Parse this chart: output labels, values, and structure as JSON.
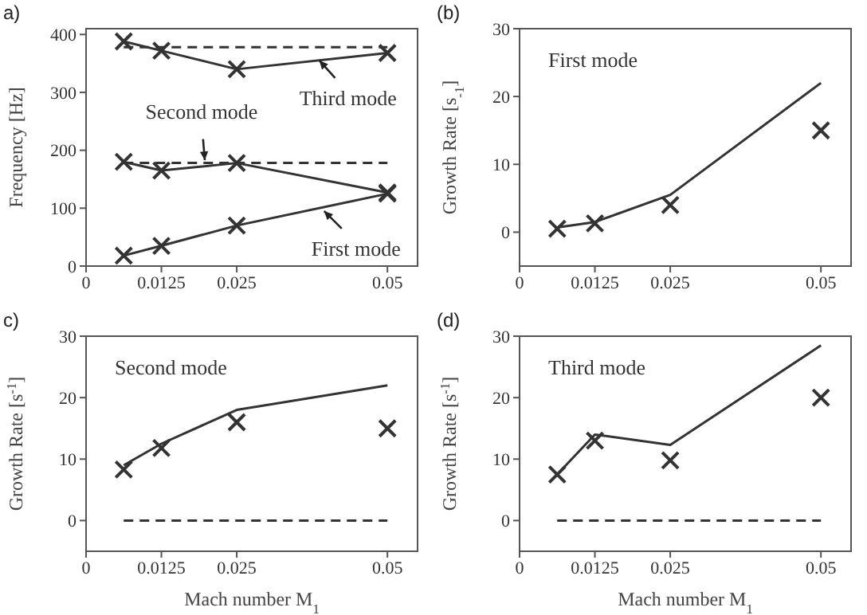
{
  "chart_data": [
    {
      "type": "line",
      "title": "a)",
      "ylabel": "Frequency [Hz]",
      "x": [
        0.00625,
        0.0125,
        0.025,
        0.05
      ],
      "xlim": [
        0,
        0.055
      ],
      "xticks": [
        0,
        0.0125,
        0.025,
        0.05
      ],
      "ylim": [
        0,
        410
      ],
      "yticks": [
        0,
        100,
        200,
        300,
        400
      ],
      "series": [
        {
          "color": "#333333",
          "marker": "cross",
          "line_style": "solid",
          "values": [
            388,
            372,
            340,
            368
          ]
        },
        {
          "color": "#333333",
          "marker": "none",
          "line_style": "dashed",
          "values": [
            378,
            378,
            378,
            378
          ]
        },
        {
          "color": "#333333",
          "marker": "cross",
          "line_style": "solid",
          "values": [
            180,
            165,
            178,
            127
          ]
        },
        {
          "color": "#333333",
          "marker": "none",
          "line_style": "dashed",
          "values": [
            178,
            178,
            178,
            178
          ]
        },
        {
          "color": "#333333",
          "marker": "cross",
          "line_style": "solid",
          "values": [
            18,
            35,
            70,
            125
          ]
        }
      ],
      "annotations": [
        {
          "text": "Third mode",
          "x": 0.0387,
          "y": 355
        },
        {
          "text": "Second mode",
          "x": 0.0197,
          "y": 183
        },
        {
          "text": "First mode",
          "x": 0.0395,
          "y": 95
        }
      ]
    },
    {
      "type": "line",
      "title": "(b)",
      "ylabel": "Growth Rate [s$_{-1}$]",
      "x": [
        0.00625,
        0.0125,
        0.025,
        0.05
      ],
      "xlim": [
        0,
        0.055
      ],
      "xticks": [
        0,
        0.0125,
        0.025,
        0.05
      ],
      "ylim": [
        -5,
        30
      ],
      "yticks": [
        0,
        10,
        20,
        30
      ],
      "series": [
        {
          "color": "#333333",
          "marker": "none",
          "line_style": "solid",
          "values": [
            0.7,
            1.5,
            5.5,
            22
          ]
        },
        {
          "type": "scatter",
          "color": "#333333",
          "marker": "cross",
          "values": [
            0.5,
            1.3,
            4,
            15
          ]
        }
      ],
      "annotations": [
        "First mode"
      ]
    },
    {
      "type": "line",
      "title": "c)",
      "ylabel": "Growth Rate [s$^{-1}$]",
      "xlabel": "Mach number M$_{1}$",
      "x": [
        0.00625,
        0.0125,
        0.025,
        0.05
      ],
      "xlim": [
        0,
        0.055
      ],
      "xticks": [
        0,
        0.0125,
        0.025,
        0.05
      ],
      "ylim": [
        -5,
        30
      ],
      "yticks": [
        0,
        10,
        20,
        30
      ],
      "series": [
        {
          "color": "#333333",
          "marker": "none",
          "line_style": "solid",
          "values": [
            9,
            12.5,
            18,
            22
          ]
        },
        {
          "color": "#333333",
          "marker": "none",
          "line_style": "dashed",
          "values": [
            0,
            0,
            0,
            0
          ]
        },
        {
          "type": "scatter",
          "color": "#333333",
          "marker": "cross",
          "values": [
            8.3,
            11.8,
            16,
            15
          ]
        }
      ],
      "annotations": [
        "Second mode"
      ]
    },
    {
      "type": "line",
      "title": "(d)",
      "ylabel": "Growth Rate [s$^{-1}$]",
      "xlabel": "Mach number M$_{1}$",
      "x": [
        0.00625,
        0.0125,
        0.025,
        0.05
      ],
      "xlim": [
        0,
        0.055
      ],
      "xticks": [
        0,
        0.0125,
        0.025,
        0.05
      ],
      "ylim": [
        -5,
        30
      ],
      "yticks": [
        0,
        10,
        20,
        30
      ],
      "series": [
        {
          "color": "#333333",
          "marker": "none",
          "line_style": "solid",
          "values": [
            7.5,
            14,
            12.3,
            28.5
          ]
        },
        {
          "color": "#333333",
          "marker": "none",
          "line_style": "dashed",
          "values": [
            0,
            0,
            0,
            0
          ]
        },
        {
          "type": "scatter",
          "color": "#333333",
          "marker": "cross",
          "values": [
            7.5,
            13,
            9.8,
            20
          ]
        }
      ],
      "annotations": [
        "Third mode"
      ]
    }
  ]
}
